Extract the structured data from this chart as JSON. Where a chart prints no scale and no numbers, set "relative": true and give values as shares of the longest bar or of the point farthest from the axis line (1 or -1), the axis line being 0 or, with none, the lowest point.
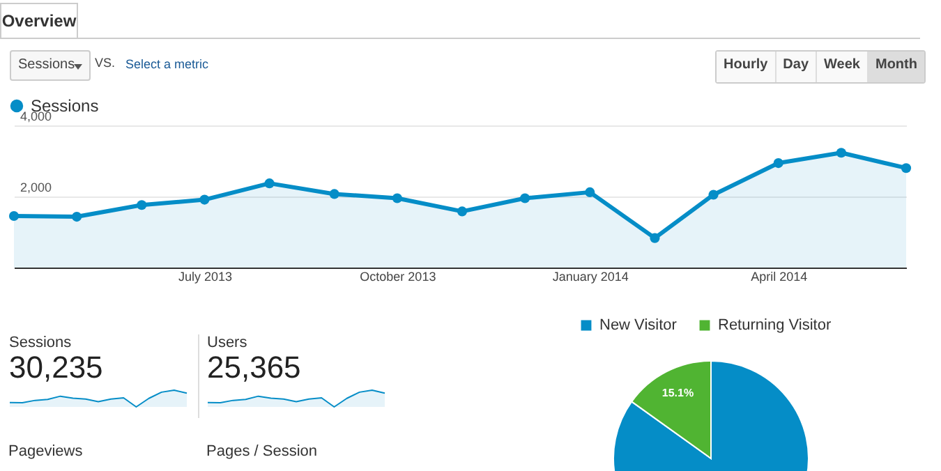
{
  "chart_data": [
    {
      "type": "other",
      "annotations": [
        "Overview",
        "Sessions",
        "VS.",
        "Select a metric",
        "Hourly",
        "Day",
        "Week",
        "Month"
      ]
    },
    {
      "type": "area",
      "x": [
        "2013-04",
        "2013-05",
        "2013-06",
        "2013-07",
        "2013-08",
        "2013-09",
        "2013-10",
        "2013-11",
        "2013-12",
        "2014-01",
        "2014-02",
        "2014-03",
        "2014-04",
        "2014-05",
        "2014-06"
      ],
      "series": [
        {
          "name": "Sessions",
          "color": "#058dc7",
          "values": [
            1450,
            1430,
            1760,
            1910,
            2370,
            2070,
            1950,
            1580,
            1950,
            2120,
            830,
            2050,
            2940,
            3230,
            2800
          ]
        }
      ],
      "xlim": [
        "2013-04",
        "2014-06"
      ],
      "xticks": [
        {
          "value": "2013-07",
          "label": "July 2013"
        },
        {
          "value": "2013-10",
          "label": "October 2013"
        },
        {
          "value": "2014-01",
          "label": "January 2014"
        },
        {
          "value": "2014-04",
          "label": "April 2014"
        }
      ],
      "ylim": [
        0,
        4000
      ],
      "yticks": [
        {
          "value": 2000,
          "label": "2,000"
        },
        {
          "value": 4000,
          "label": "4,000"
        }
      ],
      "grid": "y",
      "legend": "top left",
      "marker": "circle"
    },
    {
      "type": "area",
      "title": "Sessions",
      "subtitle": "30,235",
      "relative": true,
      "categories": [
        null,
        null,
        null,
        null,
        null,
        null,
        null,
        null,
        null,
        null,
        null,
        null,
        null,
        null,
        null
      ],
      "series": [
        {
          "color": "#058dc7",
          "values": [
            0.26,
            0.25,
            0.39,
            0.45,
            0.64,
            0.52,
            0.47,
            0.31,
            0.47,
            0.54,
            0,
            0.51,
            0.88,
            1,
            0.82
          ]
        }
      ],
      "tick_labels": false
    },
    {
      "type": "area",
      "title": "Users",
      "subtitle": "25,365",
      "relative": true,
      "categories": [
        null,
        null,
        null,
        null,
        null,
        null,
        null,
        null,
        null,
        null,
        null,
        null,
        null,
        null,
        null
      ],
      "series": [
        {
          "color": "#058dc7",
          "values": [
            0.26,
            0.25,
            0.39,
            0.45,
            0.64,
            0.52,
            0.47,
            0.31,
            0.47,
            0.54,
            0,
            0.51,
            0.88,
            1,
            0.82
          ]
        }
      ],
      "tick_labels": false
    },
    {
      "type": "other",
      "annotations": [
        "Pageviews",
        "Pages / Session"
      ]
    },
    {
      "type": "pie",
      "categories": [
        "New Visitor",
        "Returning Visitor"
      ],
      "values": [
        84.9,
        15.1
      ],
      "colors": [
        "#058dc7",
        "#50b432"
      ],
      "value_labels": [
        null,
        "15.1%"
      ],
      "legend": "top"
    }
  ]
}
